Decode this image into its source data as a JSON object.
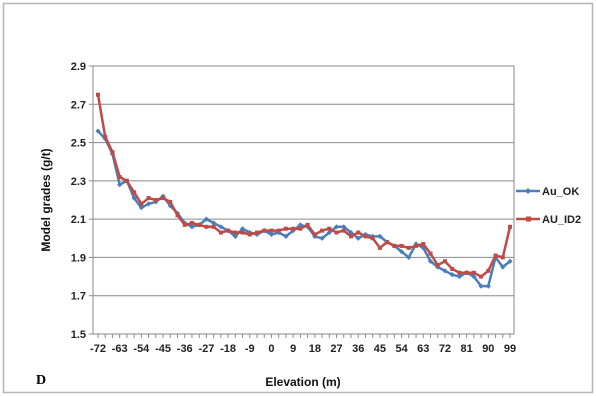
{
  "panel_label": "D",
  "chart_data": {
    "type": "line",
    "xlabel": "Elevation (m)",
    "ylabel": "Model grades (g/t)",
    "xlim": [
      -72,
      99
    ],
    "ylim": [
      1.5,
      2.9
    ],
    "yticks": [
      "1.5",
      "1.7",
      "1.9",
      "2.1",
      "2.3",
      "2.5",
      "2.7",
      "2.9"
    ],
    "xticks": [
      "-72",
      "-63",
      "-54",
      "-45",
      "-36",
      "-27",
      "-18",
      "-9",
      "0",
      "9",
      "18",
      "27",
      "36",
      "45",
      "54",
      "63",
      "72",
      "81",
      "90",
      "99"
    ],
    "grid": true,
    "legend_position": "right",
    "x": [
      -72,
      -69,
      -66,
      -63,
      -60,
      -57,
      -54,
      -51,
      -48,
      -45,
      -42,
      -39,
      -36,
      -33,
      -30,
      -27,
      -24,
      -21,
      -18,
      -15,
      -12,
      -9,
      -6,
      -3,
      0,
      3,
      6,
      9,
      12,
      15,
      18,
      21,
      24,
      27,
      30,
      33,
      36,
      39,
      42,
      45,
      48,
      51,
      54,
      57,
      60,
      63,
      66,
      69,
      72,
      75,
      78,
      81,
      84,
      87,
      90,
      93,
      96,
      99
    ],
    "series": [
      {
        "name": "Au_OK",
        "color": "#4a7ebb",
        "values": [
          2.56,
          2.52,
          2.44,
          2.28,
          2.3,
          2.21,
          2.16,
          2.18,
          2.19,
          2.22,
          2.17,
          2.13,
          2.08,
          2.06,
          2.07,
          2.1,
          2.08,
          2.06,
          2.04,
          2.01,
          2.05,
          2.03,
          2.02,
          2.04,
          2.02,
          2.03,
          2.01,
          2.04,
          2.07,
          2.06,
          2.01,
          2.0,
          2.03,
          2.06,
          2.06,
          2.03,
          2.0,
          2.02,
          2.01,
          2.01,
          1.98,
          1.96,
          1.93,
          1.9,
          1.97,
          1.95,
          1.88,
          1.85,
          1.83,
          1.81,
          1.8,
          1.82,
          1.8,
          1.75,
          1.75,
          1.9,
          1.85,
          1.88
        ]
      },
      {
        "name": "AU_ID2",
        "color": "#be4b48",
        "values": [
          2.75,
          2.53,
          2.45,
          2.32,
          2.3,
          2.24,
          2.18,
          2.21,
          2.2,
          2.21,
          2.19,
          2.12,
          2.07,
          2.08,
          2.07,
          2.06,
          2.06,
          2.03,
          2.04,
          2.03,
          2.03,
          2.02,
          2.03,
          2.04,
          2.04,
          2.04,
          2.05,
          2.05,
          2.05,
          2.07,
          2.02,
          2.04,
          2.05,
          2.03,
          2.04,
          2.01,
          2.03,
          2.01,
          2.0,
          1.95,
          1.98,
          1.96,
          1.96,
          1.95,
          1.96,
          1.97,
          1.92,
          1.86,
          1.88,
          1.84,
          1.82,
          1.82,
          1.82,
          1.8,
          1.83,
          1.91,
          1.9,
          2.06
        ]
      }
    ]
  }
}
